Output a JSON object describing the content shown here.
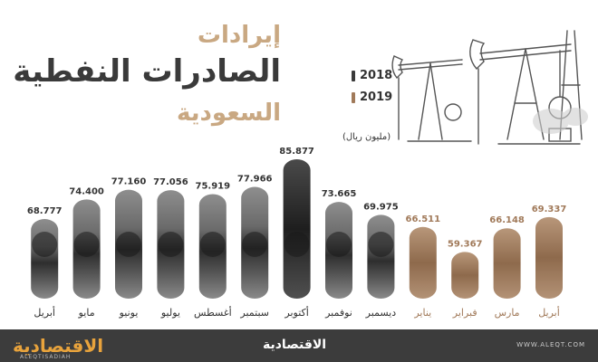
{
  "title": {
    "line1": "إيرادات",
    "line2": "الصادرات النفطية",
    "line3": "السعودية"
  },
  "legend": {
    "y2018": "2018",
    "y2019": "2019"
  },
  "unit": "(مليون ريال)",
  "footer": {
    "logo": "الاقتصادية",
    "logo_sub": "ALEQTISADIAH",
    "center_logo": "الاقتصادية",
    "site": "WWW.ALEQT.COM"
  },
  "colors": {
    "y2018": "#3a3a3a",
    "y2019": "#a17a5a",
    "title_accent": "#c9a882"
  },
  "chart_data": {
    "type": "bar",
    "categories": [
      "أبريل",
      "مايو",
      "يونيو",
      "يوليو",
      "أغسطس",
      "سبتمبر",
      "أكتوبر",
      "نوفمبر",
      "ديسمبر",
      "يناير",
      "فبراير",
      "مارس",
      "أبريل"
    ],
    "values": [
      68.777,
      74.4,
      77.16,
      77.056,
      75.919,
      77.966,
      85.877,
      73.665,
      69.975,
      66.511,
      59.367,
      66.148,
      69.337
    ],
    "labels": [
      "68.777",
      "74.400",
      "77.160",
      "77.056",
      "75.919",
      "77.966",
      "85.877",
      "73.665",
      "69.975",
      "66.511",
      "59.367",
      "66.148",
      "69.337"
    ],
    "years": [
      "2018",
      "2018",
      "2018",
      "2018",
      "2018",
      "2018",
      "2018",
      "2018",
      "2018",
      "2019",
      "2019",
      "2019",
      "2019"
    ],
    "ylabel": "مليون ريال"
  }
}
